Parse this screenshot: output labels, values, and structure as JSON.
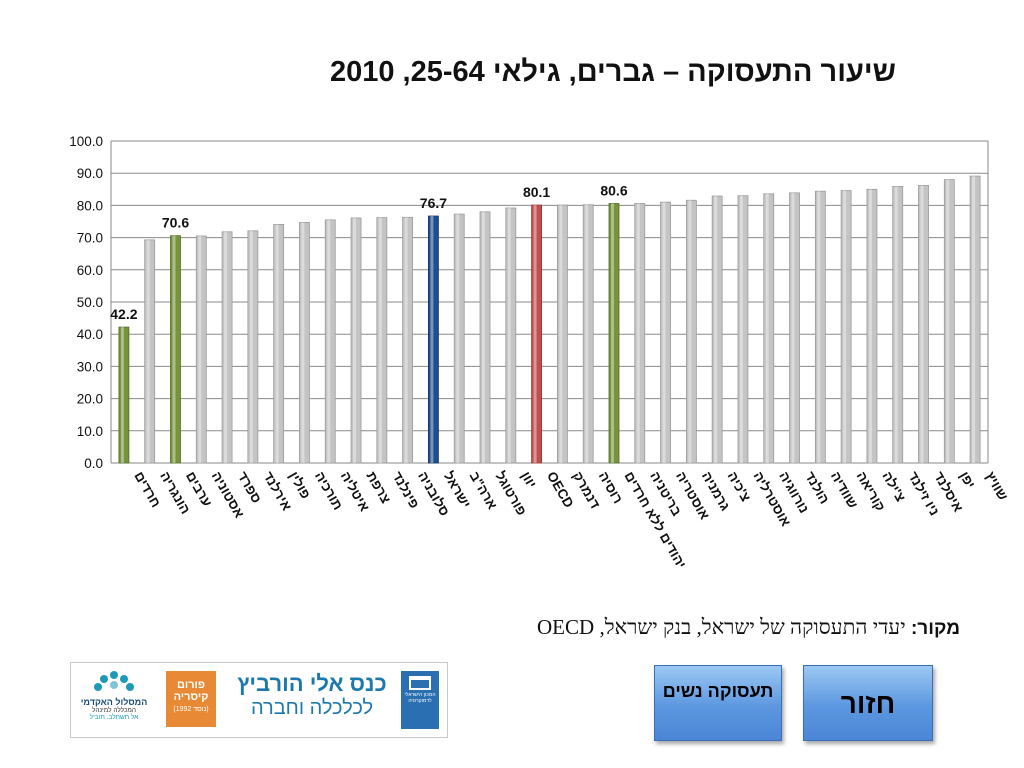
{
  "title": "שיעור התעסוקה – גברים, גילאי 25-64, 2010",
  "chart_data": {
    "type": "bar",
    "ylim": [
      0,
      100
    ],
    "yticks": [
      "100.0",
      "90.0",
      "80.0",
      "70.0",
      "60.0",
      "50.0",
      "40.0",
      "30.0",
      "20.0",
      "10.0",
      "0.0"
    ],
    "grid": true,
    "colors": {
      "default": "#c4c4c4",
      "israel_groups": "#77933c",
      "israel": "#1f4e8c",
      "oecd": "#c0504d"
    },
    "categories": [
      "חרדים",
      "הונגריה",
      "ערבים",
      "אסטוניה",
      "ספרד",
      "אירלנד",
      "פולין",
      "תורכיה",
      "איטליה",
      "צרפת",
      "פינלנד",
      "סלובניה",
      "ישראל",
      "ארה\"ב",
      "פורטוגל",
      "יוון",
      "OECD",
      "דנמרק",
      "רוסיה",
      "יהודים ללא חרדים",
      "בריטניה",
      "אוסטריה",
      "גרמניה",
      "צ'כיה",
      "אוסטרליה",
      "נורווגיה",
      "הולנד",
      "שוודיה",
      "קוריאה",
      "צ'ילה",
      "ניו זילנד",
      "איסלנד",
      "יפן",
      "שוויץ"
    ],
    "values": [
      42.2,
      69.3,
      70.6,
      70.5,
      71.8,
      72.1,
      74.1,
      74.7,
      75.5,
      76.1,
      76.2,
      76.3,
      76.7,
      77.3,
      78.0,
      79.2,
      80.1,
      80.1,
      80.2,
      80.6,
      80.6,
      81.0,
      81.6,
      82.9,
      83.0,
      83.6,
      83.9,
      84.4,
      84.6,
      85.0,
      85.9,
      86.2,
      88.0,
      89.1
    ],
    "highlight": [
      "israel_groups",
      "default",
      "israel_groups",
      "default",
      "default",
      "default",
      "default",
      "default",
      "default",
      "default",
      "default",
      "default",
      "israel",
      "default",
      "default",
      "default",
      "oecd",
      "default",
      "default",
      "israel_groups",
      "default",
      "default",
      "default",
      "default",
      "default",
      "default",
      "default",
      "default",
      "default",
      "default",
      "default",
      "default",
      "default",
      "default"
    ],
    "data_labels": [
      {
        "index": 0,
        "text": "42.2"
      },
      {
        "index": 2,
        "text": "70.6"
      },
      {
        "index": 12,
        "text": "76.7"
      },
      {
        "index": 16,
        "text": "80.1"
      },
      {
        "index": 19,
        "text": "80.6"
      }
    ]
  },
  "source": {
    "label": "מקור:",
    "text": " יעדי התעסוקה של ישראל, בנק ישראל, OECD"
  },
  "logos": {
    "hamaslul_name": "המסלול האקדמי",
    "hamaslul_sub": "המכללה למינהל",
    "hamaslul_tag": "אל תשתלב. תוביל",
    "caesarea_line1": "פורום",
    "caesarea_line2": "קיסריה",
    "caesarea_line3": "(נוסד 1992)",
    "conference_line1": "כנס אלי הורביץ",
    "conference_line2": "לכלכלה וחברה",
    "idi_text": "המכון הישראלי לדמוקרטיה"
  },
  "buttons": {
    "women_employment": "תעסוקה נשים",
    "back": "חזור"
  }
}
